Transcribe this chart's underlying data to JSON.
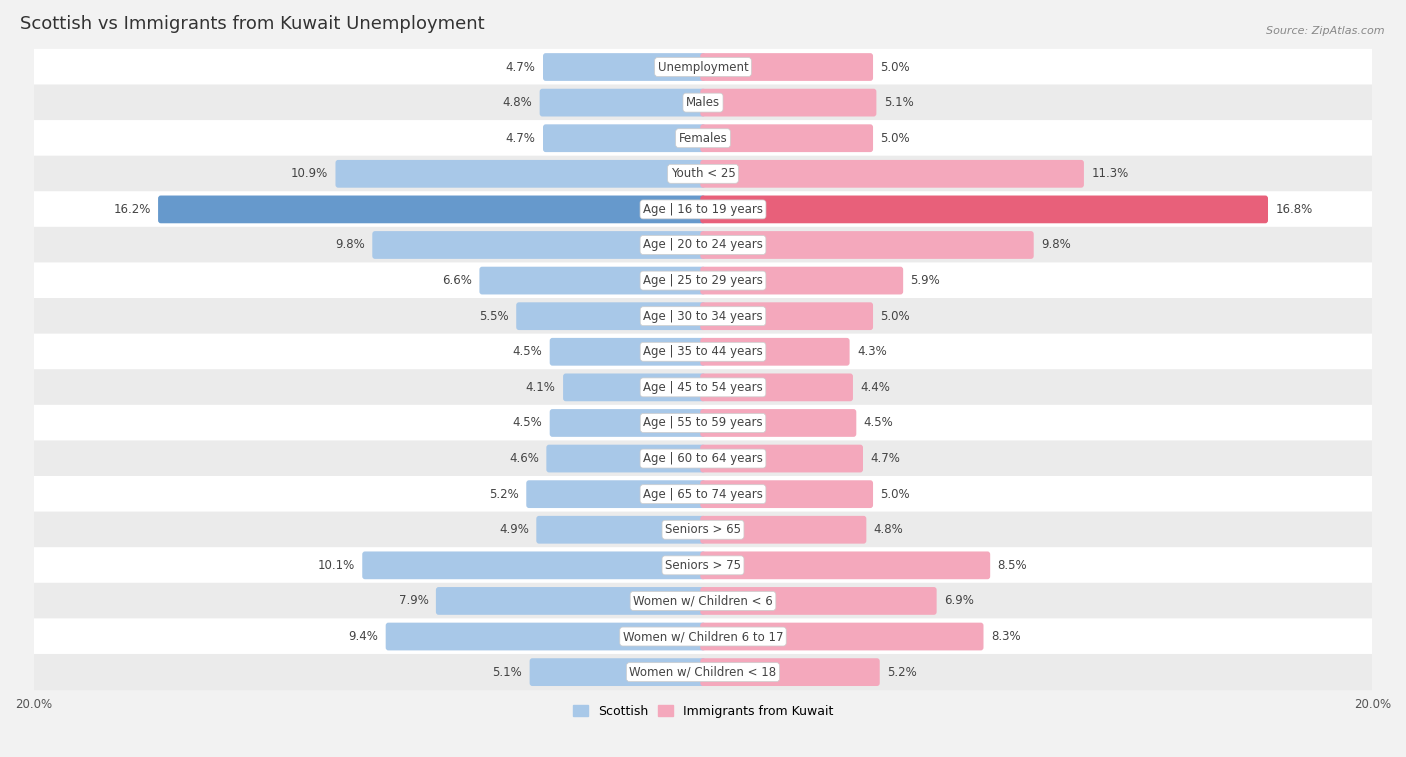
{
  "title": "Scottish vs Immigrants from Kuwait Unemployment",
  "source": "Source: ZipAtlas.com",
  "categories": [
    "Unemployment",
    "Males",
    "Females",
    "Youth < 25",
    "Age | 16 to 19 years",
    "Age | 20 to 24 years",
    "Age | 25 to 29 years",
    "Age | 30 to 34 years",
    "Age | 35 to 44 years",
    "Age | 45 to 54 years",
    "Age | 55 to 59 years",
    "Age | 60 to 64 years",
    "Age | 65 to 74 years",
    "Seniors > 65",
    "Seniors > 75",
    "Women w/ Children < 6",
    "Women w/ Children 6 to 17",
    "Women w/ Children < 18"
  ],
  "scottish": [
    4.7,
    4.8,
    4.7,
    10.9,
    16.2,
    9.8,
    6.6,
    5.5,
    4.5,
    4.1,
    4.5,
    4.6,
    5.2,
    4.9,
    10.1,
    7.9,
    9.4,
    5.1
  ],
  "kuwait": [
    5.0,
    5.1,
    5.0,
    11.3,
    16.8,
    9.8,
    5.9,
    5.0,
    4.3,
    4.4,
    4.5,
    4.7,
    5.0,
    4.8,
    8.5,
    6.9,
    8.3,
    5.2
  ],
  "scottish_color": "#a8c8e8",
  "kuwait_color": "#f4a8bc",
  "scottish_color_dark": "#6699cc",
  "kuwait_color_dark": "#e8607a",
  "background_color": "#f2f2f2",
  "row_bg_white": "#ffffff",
  "row_bg_gray": "#ebebeb",
  "max_value": 20.0,
  "legend_scottish": "Scottish",
  "legend_kuwait": "Immigrants from Kuwait",
  "title_fontsize": 13,
  "label_fontsize": 8.5,
  "source_fontsize": 8
}
